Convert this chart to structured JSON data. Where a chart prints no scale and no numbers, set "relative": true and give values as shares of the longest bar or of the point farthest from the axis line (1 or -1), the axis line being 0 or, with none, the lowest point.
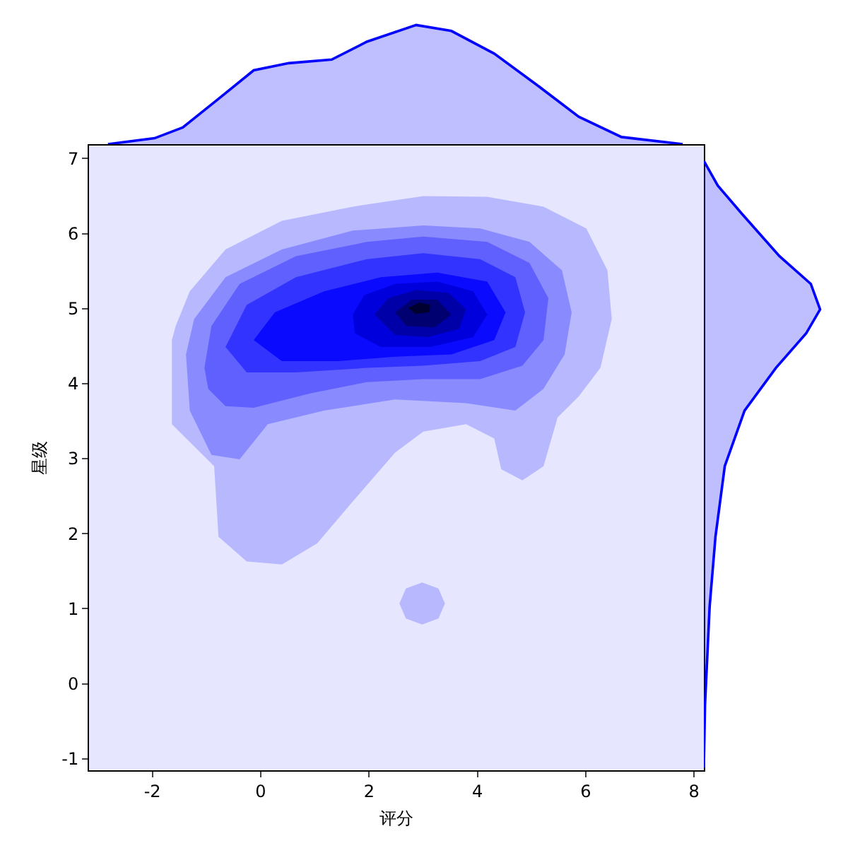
{
  "chart_data": [
    {
      "type": "area",
      "relative": true,
      "orientation": "vertical",
      "tick_labels": false,
      "xlim": [
        -3.17,
        8.18
      ],
      "x": [
        -2.82,
        -1.96,
        -1.44,
        -0.78,
        -0.13,
        0.52,
        1.31,
        1.96,
        2.87,
        3.52,
        4.31,
        5.09,
        5.87,
        6.66,
        7.79
      ],
      "series": [
        {
          "color": "#0000ff",
          "values": [
            0.0,
            0.05,
            0.14,
            0.38,
            0.62,
            0.68,
            0.71,
            0.86,
            1.0,
            0.95,
            0.76,
            0.5,
            0.23,
            0.06,
            0.0
          ]
        }
      ]
    },
    {
      "type": "area",
      "xlabel": "评分",
      "ylabel": "星级",
      "xlim": [
        -3.17,
        8.18
      ],
      "ylim": [
        -1.15,
        7.17
      ],
      "xticks": [
        -2,
        0,
        2,
        4,
        6,
        8
      ],
      "bands": [
        {
          "axis": "y",
          "from": -1.15,
          "to": 7.17,
          "color": "#e6e6ff"
        }
      ],
      "yticks": [
        -1,
        0,
        1,
        2,
        3,
        4,
        5,
        6,
        7
      ],
      "series": [
        {
          "color": "#b8b8ff",
          "x": [
            -1.64,
            -1.64,
            -0.86,
            -0.78,
            -0.26,
            0.39,
            1.04,
            1.7,
            2.48,
            3.0,
            3.79,
            4.31,
            4.44,
            4.83,
            5.22,
            5.48,
            5.87,
            6.27,
            6.48,
            6.4,
            6.01,
            5.22,
            4.18,
            3.0,
            1.7,
            0.39,
            -0.65,
            -1.31,
            -1.57
          ],
          "values": [
            4.58,
            3.46,
            2.9,
            1.96,
            1.63,
            1.59,
            1.87,
            2.43,
            3.08,
            3.36,
            3.46,
            3.27,
            2.86,
            2.71,
            2.9,
            3.55,
            3.83,
            4.21,
            4.86,
            5.51,
            6.07,
            6.36,
            6.49,
            6.5,
            6.36,
            6.17,
            5.79,
            5.23,
            4.77
          ]
        },
        {
          "color": "#b8b8ff",
          "x": [
            3.4,
            3.28,
            2.98,
            2.68,
            2.56,
            2.68,
            2.98,
            3.28
          ],
          "values": [
            1.07,
            1.27,
            1.35,
            1.27,
            1.07,
            0.87,
            0.79,
            0.87
          ]
        },
        {
          "color": "#8a8aff",
          "x": [
            -1.38,
            -1.31,
            -0.91,
            -0.39,
            0.13,
            1.17,
            2.48,
            3.79,
            4.7,
            5.22,
            5.61,
            5.74,
            5.56,
            4.96,
            4.05,
            3.0,
            1.7,
            0.39,
            -0.65,
            -1.23
          ],
          "values": [
            4.39,
            3.64,
            3.05,
            2.99,
            3.46,
            3.64,
            3.79,
            3.74,
            3.64,
            3.93,
            4.39,
            4.95,
            5.51,
            5.89,
            6.07,
            6.11,
            6.04,
            5.79,
            5.42,
            4.86
          ]
        },
        {
          "color": "#6060ff",
          "x": [
            -1.04,
            -0.91,
            -0.39,
            0.65,
            1.96,
            3.0,
            4.18,
            4.96,
            5.31,
            5.22,
            4.83,
            4.05,
            3.0,
            1.96,
            0.91,
            -0.13,
            -0.65,
            -0.97
          ],
          "values": [
            4.21,
            4.77,
            5.33,
            5.7,
            5.89,
            5.96,
            5.89,
            5.61,
            5.14,
            4.58,
            4.24,
            4.06,
            4.06,
            4.02,
            3.87,
            3.68,
            3.7,
            3.93
          ]
        },
        {
          "color": "#3333ff",
          "x": [
            -0.65,
            -0.26,
            0.65,
            1.96,
            3.0,
            4.05,
            4.7,
            4.88,
            4.7,
            4.05,
            3.0,
            1.96,
            0.65,
            -0.26
          ],
          "values": [
            4.49,
            5.05,
            5.42,
            5.66,
            5.74,
            5.66,
            5.42,
            4.95,
            4.49,
            4.3,
            4.24,
            4.21,
            4.15,
            4.15
          ]
        },
        {
          "color": "#0a0aff",
          "x": [
            -0.13,
            0.26,
            1.17,
            2.22,
            3.26,
            4.18,
            4.52,
            4.31,
            3.52,
            2.48,
            1.44,
            0.39
          ],
          "values": [
            4.58,
            4.95,
            5.23,
            5.42,
            5.48,
            5.36,
            4.95,
            4.58,
            4.39,
            4.36,
            4.3,
            4.3
          ]
        },
        {
          "color": "#0000dd",
          "x": [
            1.7,
            1.91,
            2.48,
            3.26,
            3.92,
            4.18,
            3.92,
            3.13,
            2.22,
            1.74
          ],
          "values": [
            4.92,
            5.18,
            5.33,
            5.36,
            5.23,
            4.92,
            4.62,
            4.49,
            4.49,
            4.67
          ]
        },
        {
          "color": "#0000a8",
          "x": [
            2.1,
            2.35,
            2.87,
            3.47,
            3.79,
            3.66,
            3.08,
            2.48
          ],
          "values": [
            4.92,
            5.14,
            5.25,
            5.21,
            4.99,
            4.73,
            4.62,
            4.65
          ]
        },
        {
          "color": "#000070",
          "x": [
            2.48,
            2.79,
            3.26,
            3.52,
            3.21,
            2.69
          ],
          "values": [
            4.95,
            5.12,
            5.12,
            4.92,
            4.75,
            4.77
          ]
        },
        {
          "color": "#000030",
          "x": [
            2.72,
            2.92,
            3.13,
            3.11,
            2.85
          ],
          "values": [
            5.01,
            5.08,
            5.05,
            4.95,
            4.93
          ]
        }
      ]
    },
    {
      "type": "area",
      "relative": true,
      "orientation": "horizontal",
      "tick_labels": false,
      "ylim": [
        -1.15,
        7.17
      ],
      "x": [
        -1.12,
        -0.28,
        1.03,
        1.96,
        2.9,
        3.64,
        4.21,
        4.67,
        4.99,
        5.33,
        5.7,
        6.26,
        6.64,
        6.97
      ],
      "series": [
        {
          "color": "#0000ff",
          "values": [
            0.0,
            0.01,
            0.05,
            0.1,
            0.18,
            0.35,
            0.62,
            0.88,
            1.0,
            0.92,
            0.65,
            0.33,
            0.12,
            0.0
          ]
        }
      ]
    }
  ]
}
